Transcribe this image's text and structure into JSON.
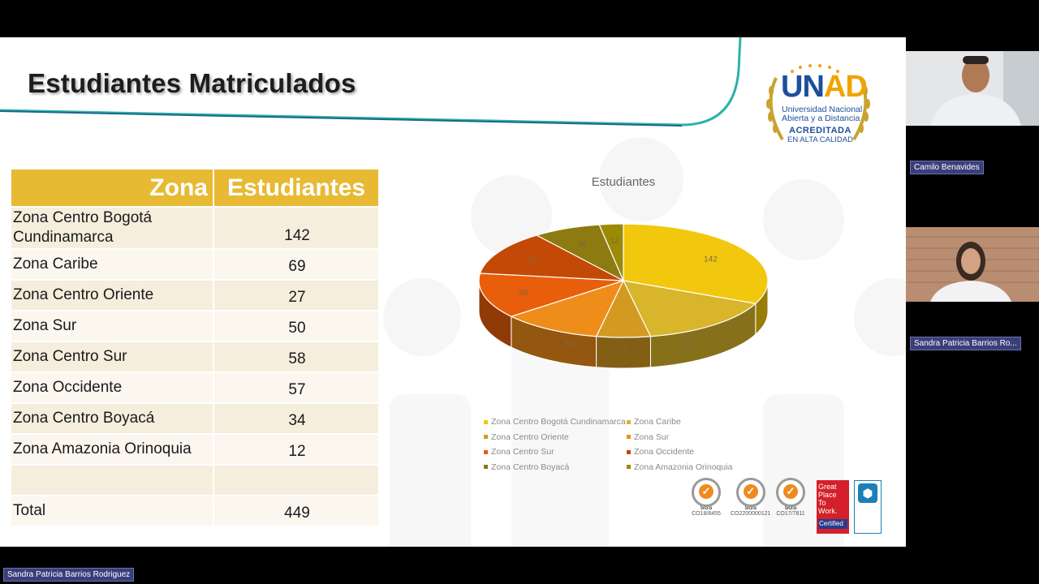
{
  "slide": {
    "title": "Estudiantes Matriculados",
    "logo": {
      "brand_prefix": "UN",
      "brand_suffix": "AD",
      "line1": "Universidad Nacional",
      "line2": "Abierta y a Distancia",
      "line3": "ACREDITADA",
      "line4": "EN ALTA CALIDAD"
    },
    "table": {
      "headers": [
        "Zona",
        "Estudiantes"
      ],
      "rows": [
        {
          "zona": "Zona Centro Bogotá Cundinamarca",
          "estudiantes": "142"
        },
        {
          "zona": "Zona Caribe",
          "estudiantes": "69"
        },
        {
          "zona": "Zona Centro Oriente",
          "estudiantes": "27"
        },
        {
          "zona": "Zona Sur",
          "estudiantes": "50"
        },
        {
          "zona": "Zona Centro Sur",
          "estudiantes": "58"
        },
        {
          "zona": "Zona Occidente",
          "estudiantes": "57"
        },
        {
          "zona": "Zona Centro Boyacá",
          "estudiantes": "34"
        },
        {
          "zona": "Zona Amazonia Orinoquia",
          "estudiantes": "12"
        },
        {
          "zona": "",
          "estudiantes": ""
        }
      ],
      "total_label": "Total",
      "total_value": "449"
    },
    "badges": {
      "sgs1": "CO18/8455",
      "sgs2": "CO2200000121",
      "sgs3": "CO17/7811",
      "sgs_text": "SGS",
      "gptw_line1": "Great",
      "gptw_line2": "Place",
      "gptw_line3": "To",
      "gptw_line4": "Work.",
      "gptw_cert": "Certified"
    }
  },
  "chart_data": {
    "type": "pie",
    "title": "Estudiantes",
    "categories": [
      "Zona Centro Bogotá Cundinamarca",
      "Zona Caribe",
      "Zona Centro Oriente",
      "Zona Sur",
      "Zona Centro Sur",
      "Zona Occidente",
      "Zona Centro Boyacá",
      "Zona Amazonia Orinoquia"
    ],
    "values": [
      142,
      69,
      27,
      50,
      58,
      57,
      34,
      12
    ],
    "colors": [
      "#f2c80f",
      "#d8b52a",
      "#d39a22",
      "#ef8d1a",
      "#e95e0a",
      "#c34a06",
      "#8d7a10",
      "#9c8a05"
    ],
    "legend_position": "bottom",
    "style": "3d"
  },
  "participants": {
    "tile1_name": "Camilo Benavides",
    "tile2_name": "Sandra Patricia Barrios Ro...",
    "active_speaker": "Sandra Patricia Barrios Rodriguez"
  }
}
